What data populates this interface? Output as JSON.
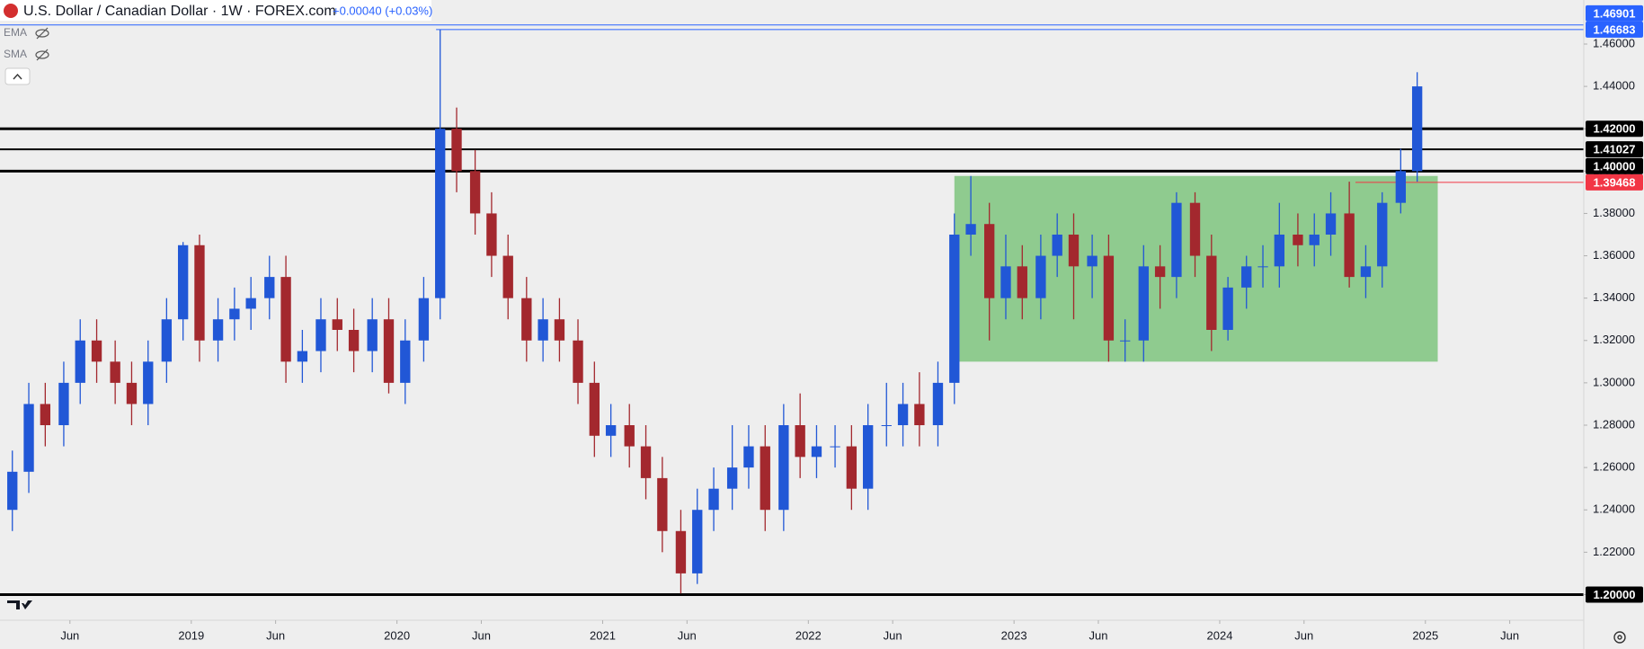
{
  "header": {
    "title": "U.S. Dollar / Canadian Dollar · 1W · FOREX.com",
    "change": "+0.00040 (+0.03%)",
    "indicators": [
      "EMA",
      "SMA"
    ]
  },
  "chart_data": {
    "type": "candlestick",
    "up_color": "#2157d6",
    "down_color": "#a3282e",
    "grid": false,
    "x": [
      2018.13,
      2018.21,
      2018.29,
      2018.38,
      2018.46,
      2018.54,
      2018.63,
      2018.71,
      2018.79,
      2018.88,
      2018.96,
      2019.04,
      2019.13,
      2019.21,
      2019.29,
      2019.38,
      2019.46,
      2019.54,
      2019.63,
      2019.71,
      2019.79,
      2019.88,
      2019.96,
      2020.04,
      2020.13,
      2020.21,
      2020.29,
      2020.38,
      2020.46,
      2020.54,
      2020.63,
      2020.71,
      2020.79,
      2020.88,
      2020.96,
      2021.04,
      2021.13,
      2021.21,
      2021.29,
      2021.38,
      2021.46,
      2021.54,
      2021.63,
      2021.71,
      2021.79,
      2021.88,
      2021.96,
      2022.04,
      2022.13,
      2022.21,
      2022.29,
      2022.38,
      2022.46,
      2022.54,
      2022.63,
      2022.71,
      2022.79,
      2022.88,
      2022.96,
      2023.04,
      2023.13,
      2023.21,
      2023.29,
      2023.38,
      2023.46,
      2023.54,
      2023.63,
      2023.71,
      2023.79,
      2023.88,
      2023.96,
      2024.04,
      2024.13,
      2024.21,
      2024.29,
      2024.38,
      2024.46,
      2024.54,
      2024.63,
      2024.71,
      2024.79,
      2024.88,
      2024.96
    ],
    "open": [
      1.24,
      1.258,
      1.29,
      1.28,
      1.3,
      1.32,
      1.31,
      1.3,
      1.29,
      1.31,
      1.33,
      1.365,
      1.32,
      1.33,
      1.335,
      1.34,
      1.35,
      1.31,
      1.315,
      1.33,
      1.325,
      1.315,
      1.33,
      1.3,
      1.32,
      1.34,
      1.42,
      1.4,
      1.38,
      1.36,
      1.34,
      1.32,
      1.33,
      1.32,
      1.3,
      1.275,
      1.28,
      1.27,
      1.255,
      1.23,
      1.21,
      1.24,
      1.25,
      1.26,
      1.27,
      1.24,
      1.28,
      1.265,
      1.27,
      1.27,
      1.25,
      1.28,
      1.28,
      1.29,
      1.28,
      1.3,
      1.37,
      1.375,
      1.34,
      1.355,
      1.34,
      1.36,
      1.37,
      1.355,
      1.36,
      1.32,
      1.32,
      1.355,
      1.35,
      1.385,
      1.36,
      1.325,
      1.345,
      1.355,
      1.355,
      1.37,
      1.365,
      1.37,
      1.38,
      1.35,
      1.355,
      1.385,
      1.4
    ],
    "high": [
      1.268,
      1.3,
      1.3,
      1.31,
      1.33,
      1.33,
      1.32,
      1.31,
      1.32,
      1.34,
      1.3665,
      1.37,
      1.34,
      1.345,
      1.35,
      1.36,
      1.36,
      1.325,
      1.34,
      1.34,
      1.335,
      1.34,
      1.34,
      1.33,
      1.35,
      1.4668,
      1.43,
      1.41,
      1.39,
      1.37,
      1.35,
      1.34,
      1.34,
      1.33,
      1.31,
      1.29,
      1.29,
      1.28,
      1.265,
      1.24,
      1.25,
      1.26,
      1.28,
      1.28,
      1.28,
      1.29,
      1.295,
      1.28,
      1.28,
      1.28,
      1.29,
      1.3,
      1.3,
      1.305,
      1.31,
      1.38,
      1.3977,
      1.385,
      1.37,
      1.365,
      1.37,
      1.38,
      1.38,
      1.37,
      1.37,
      1.33,
      1.365,
      1.365,
      1.39,
      1.39,
      1.37,
      1.35,
      1.36,
      1.365,
      1.385,
      1.38,
      1.38,
      1.39,
      1.395,
      1.365,
      1.39,
      1.4105,
      1.4467
    ],
    "low": [
      1.23,
      1.248,
      1.27,
      1.27,
      1.29,
      1.3,
      1.29,
      1.28,
      1.28,
      1.3,
      1.32,
      1.31,
      1.31,
      1.32,
      1.325,
      1.33,
      1.3,
      1.3,
      1.305,
      1.315,
      1.305,
      1.305,
      1.295,
      1.29,
      1.31,
      1.33,
      1.39,
      1.37,
      1.35,
      1.33,
      1.31,
      1.31,
      1.31,
      1.29,
      1.265,
      1.265,
      1.26,
      1.245,
      1.22,
      1.2005,
      1.205,
      1.23,
      1.24,
      1.25,
      1.23,
      1.23,
      1.255,
      1.255,
      1.26,
      1.24,
      1.24,
      1.27,
      1.27,
      1.27,
      1.27,
      1.29,
      1.36,
      1.32,
      1.33,
      1.33,
      1.33,
      1.35,
      1.33,
      1.34,
      1.31,
      1.31,
      1.31,
      1.335,
      1.34,
      1.35,
      1.315,
      1.32,
      1.335,
      1.345,
      1.345,
      1.355,
      1.355,
      1.36,
      1.345,
      1.34,
      1.345,
      1.38,
      1.395
    ],
    "close": [
      1.258,
      1.29,
      1.28,
      1.3,
      1.32,
      1.31,
      1.3,
      1.29,
      1.31,
      1.33,
      1.365,
      1.32,
      1.33,
      1.335,
      1.34,
      1.35,
      1.31,
      1.315,
      1.33,
      1.325,
      1.315,
      1.33,
      1.3,
      1.32,
      1.34,
      1.42,
      1.4,
      1.38,
      1.36,
      1.34,
      1.32,
      1.33,
      1.32,
      1.3,
      1.275,
      1.28,
      1.27,
      1.255,
      1.23,
      1.21,
      1.24,
      1.25,
      1.26,
      1.27,
      1.24,
      1.28,
      1.265,
      1.27,
      1.27,
      1.25,
      1.28,
      1.28,
      1.29,
      1.28,
      1.3,
      1.37,
      1.375,
      1.34,
      1.355,
      1.34,
      1.36,
      1.37,
      1.355,
      1.36,
      1.32,
      1.32,
      1.355,
      1.35,
      1.385,
      1.36,
      1.325,
      1.345,
      1.355,
      1.355,
      1.37,
      1.365,
      1.37,
      1.38,
      1.35,
      1.355,
      1.385,
      1.4,
      1.44
    ],
    "xlim": [
      2018.07,
      2025.77
    ],
    "xticks": [
      {
        "value": 2018.41,
        "label": "Jun"
      },
      {
        "value": 2019,
        "label": "2019"
      },
      {
        "value": 2019.41,
        "label": "Jun"
      },
      {
        "value": 2020,
        "label": "2020"
      },
      {
        "value": 2020.41,
        "label": "Jun"
      },
      {
        "value": 2021,
        "label": "2021"
      },
      {
        "value": 2021.41,
        "label": "Jun"
      },
      {
        "value": 2022,
        "label": "2022"
      },
      {
        "value": 2022.41,
        "label": "Jun"
      },
      {
        "value": 2023,
        "label": "2023"
      },
      {
        "value": 2023.41,
        "label": "Jun"
      },
      {
        "value": 2024,
        "label": "2024"
      },
      {
        "value": 2024.41,
        "label": "Jun"
      },
      {
        "value": 2025,
        "label": "2025"
      },
      {
        "value": 2025.41,
        "label": "Jun"
      }
    ],
    "ylim": [
      1.19,
      1.4808
    ],
    "yticks": [
      {
        "value": 1.2,
        "label": "1.20000"
      },
      {
        "value": 1.22,
        "label": "1.22000"
      },
      {
        "value": 1.24,
        "label": "1.24000"
      },
      {
        "value": 1.26,
        "label": "1.26000"
      },
      {
        "value": 1.28,
        "label": "1.28000"
      },
      {
        "value": 1.3,
        "label": "1.30000"
      },
      {
        "value": 1.32,
        "label": "1.32000"
      },
      {
        "value": 1.34,
        "label": "1.34000"
      },
      {
        "value": 1.36,
        "label": "1.36000"
      },
      {
        "value": 1.38,
        "label": "1.38000"
      },
      {
        "value": 1.4,
        "label": "1.40000"
      },
      {
        "value": 1.42,
        "label": "1.42000"
      },
      {
        "value": 1.44,
        "label": "1.44000"
      },
      {
        "value": 1.46,
        "label": "1.46000"
      }
    ],
    "zone": {
      "x": [
        2022.71,
        2025.06
      ],
      "y": [
        1.31,
        1.3977
      ],
      "color": "#8fcb8f"
    },
    "levels": [
      {
        "value": 1.46683,
        "label": "1.46683",
        "color": "#2962ff",
        "weight": 1,
        "from": 2020.19
      },
      {
        "value": 1.46901,
        "label": "1.46901",
        "color": "#2962ff",
        "weight": 1
      },
      {
        "value": 1.42,
        "label": "1.42000",
        "color": "#000000",
        "weight": 3
      },
      {
        "value": 1.41027,
        "label": "1.41027",
        "color": "#000000",
        "weight": 2
      },
      {
        "value": 1.4,
        "label": "1.40000",
        "color": "#000000",
        "weight": 3
      },
      {
        "value": 1.39468,
        "label": "1.39468",
        "color": "#f23645",
        "weight": 1,
        "from": 2024.66
      },
      {
        "value": 1.2,
        "label": "1.20000",
        "color": "#000000",
        "weight": 3
      }
    ]
  }
}
